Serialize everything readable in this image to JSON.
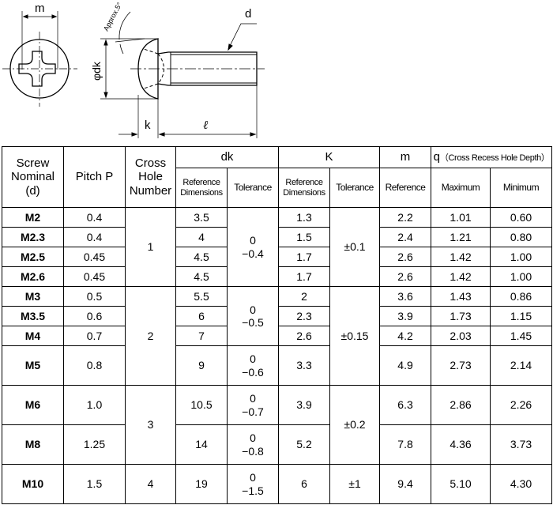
{
  "diagram": {
    "labels": {
      "m": "m",
      "d": "d",
      "dk": "φdk",
      "k": "k",
      "l": "ℓ",
      "angle": "Approx.5°"
    }
  },
  "table": {
    "headers": {
      "nominal": [
        "Screw",
        "Nominal",
        "(d)"
      ],
      "pitch": "Pitch  P",
      "cross": [
        "Cross",
        "Hole",
        "Number"
      ],
      "dk": "dk",
      "k": "K",
      "m": "m",
      "q": "q",
      "q_note": "（Cross Recess Hole Depth）",
      "ref_dims": [
        "Reference",
        "Dimensions"
      ],
      "tolerance": "Tolerance",
      "reference": "Reference",
      "maximum": "Maximum",
      "minimum": "Minimum"
    },
    "rows": [
      {
        "nominal": "M2",
        "pitch": "0.4",
        "dk_ref": "3.5",
        "k_ref": "1.3",
        "m": "2.2",
        "q_max": "1.01",
        "q_min": "0.60"
      },
      {
        "nominal": "M2.3",
        "pitch": "0.4",
        "dk_ref": "4",
        "k_ref": "1.5",
        "m": "2.4",
        "q_max": "1.21",
        "q_min": "0.80"
      },
      {
        "nominal": "M2.5",
        "pitch": "0.45",
        "dk_ref": "4.5",
        "k_ref": "1.7",
        "m": "2.6",
        "q_max": "1.42",
        "q_min": "1.00"
      },
      {
        "nominal": "M2.6",
        "pitch": "0.45",
        "dk_ref": "4.5",
        "k_ref": "1.7",
        "m": "2.6",
        "q_max": "1.42",
        "q_min": "1.00"
      },
      {
        "nominal": "M3",
        "pitch": "0.5",
        "dk_ref": "5.5",
        "k_ref": "2",
        "m": "3.6",
        "q_max": "1.43",
        "q_min": "0.86"
      },
      {
        "nominal": "M3.5",
        "pitch": "0.6",
        "dk_ref": "6",
        "k_ref": "2.3",
        "m": "3.9",
        "q_max": "1.73",
        "q_min": "1.15"
      },
      {
        "nominal": "M4",
        "pitch": "0.7",
        "dk_ref": "7",
        "k_ref": "2.6",
        "m": "4.2",
        "q_max": "2.03",
        "q_min": "1.45"
      },
      {
        "nominal": "M5",
        "pitch": "0.8",
        "dk_ref": "9",
        "k_ref": "3.3",
        "m": "4.9",
        "q_max": "2.73",
        "q_min": "2.14"
      },
      {
        "nominal": "M6",
        "pitch": "1.0",
        "dk_ref": "10.5",
        "k_ref": "3.9",
        "m": "6.3",
        "q_max": "2.86",
        "q_min": "2.26"
      },
      {
        "nominal": "M8",
        "pitch": "1.25",
        "dk_ref": "14",
        "k_ref": "5.2",
        "m": "7.8",
        "q_max": "4.36",
        "q_min": "3.73"
      },
      {
        "nominal": "M10",
        "pitch": "1.5",
        "dk_ref": "19",
        "k_ref": "6",
        "m": "9.4",
        "q_max": "5.10",
        "q_min": "4.30"
      }
    ],
    "cross_hole_groups": [
      {
        "value": "1",
        "span": 4
      },
      {
        "value": "2",
        "span": 4
      },
      {
        "value": "3",
        "span": 2
      },
      {
        "value": "4",
        "span": 1
      }
    ],
    "dk_tolerance_groups": [
      {
        "upper": "0",
        "lower": "−0.4",
        "span": 4
      },
      {
        "upper": "0",
        "lower": "−0.5",
        "span": 3
      },
      {
        "upper": "0",
        "lower": "−0.6",
        "span": 1
      },
      {
        "upper": "0",
        "lower": "−0.7",
        "span": 1
      },
      {
        "upper": "0",
        "lower": "−0.8",
        "span": 1
      },
      {
        "upper": "0",
        "lower": "−1.5",
        "span": 1
      }
    ],
    "k_tolerance_groups": [
      {
        "value": "±0.1",
        "span": 4
      },
      {
        "value": "±0.15",
        "span": 4
      },
      {
        "value": "±0.2",
        "span": 2
      },
      {
        "value": "±1",
        "span": 1
      }
    ]
  }
}
